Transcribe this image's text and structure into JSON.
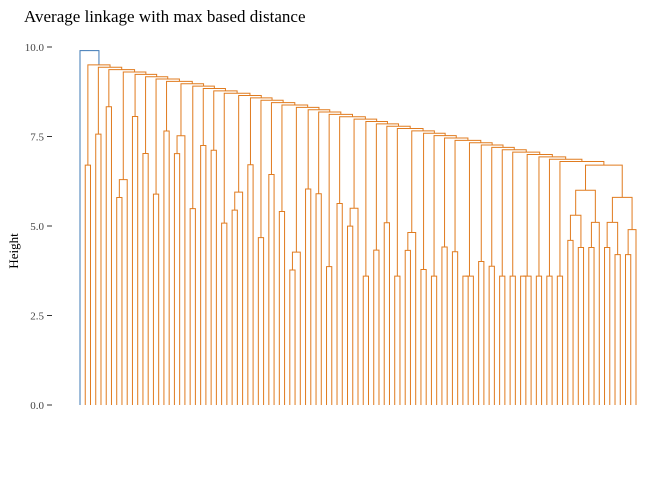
{
  "chart_data": {
    "type": "dendrogram",
    "title": "Average linkage with max based distance",
    "ylabel": "Height",
    "xlabel": "",
    "ylim": [
      0,
      10
    ],
    "y_ticks": [
      {
        "value": 0.0,
        "label": "0.0"
      },
      {
        "value": 2.5,
        "label": "2.5"
      },
      {
        "value": 5.0,
        "label": "5.0"
      },
      {
        "value": 7.5,
        "label": "7.5"
      },
      {
        "value": 10.0,
        "label": "10.0"
      }
    ],
    "grid": false,
    "leaf_count": 100,
    "root_height": 9.9,
    "colors": {
      "cluster_main": "#E07B1F",
      "cluster_singleton": "#3D78B5"
    },
    "clusters": [
      {
        "color": "cluster_singleton",
        "leaves": 1
      },
      {
        "color": "cluster_main",
        "leaves": 99,
        "merge_height": 9.5
      }
    ],
    "merge_heights": {
      "chain_start": 9.5,
      "chain_end": 6.8,
      "right_group": 6.7,
      "leaf_pairs_min": 3.6,
      "leaf_pairs_max": 9.3
    }
  }
}
